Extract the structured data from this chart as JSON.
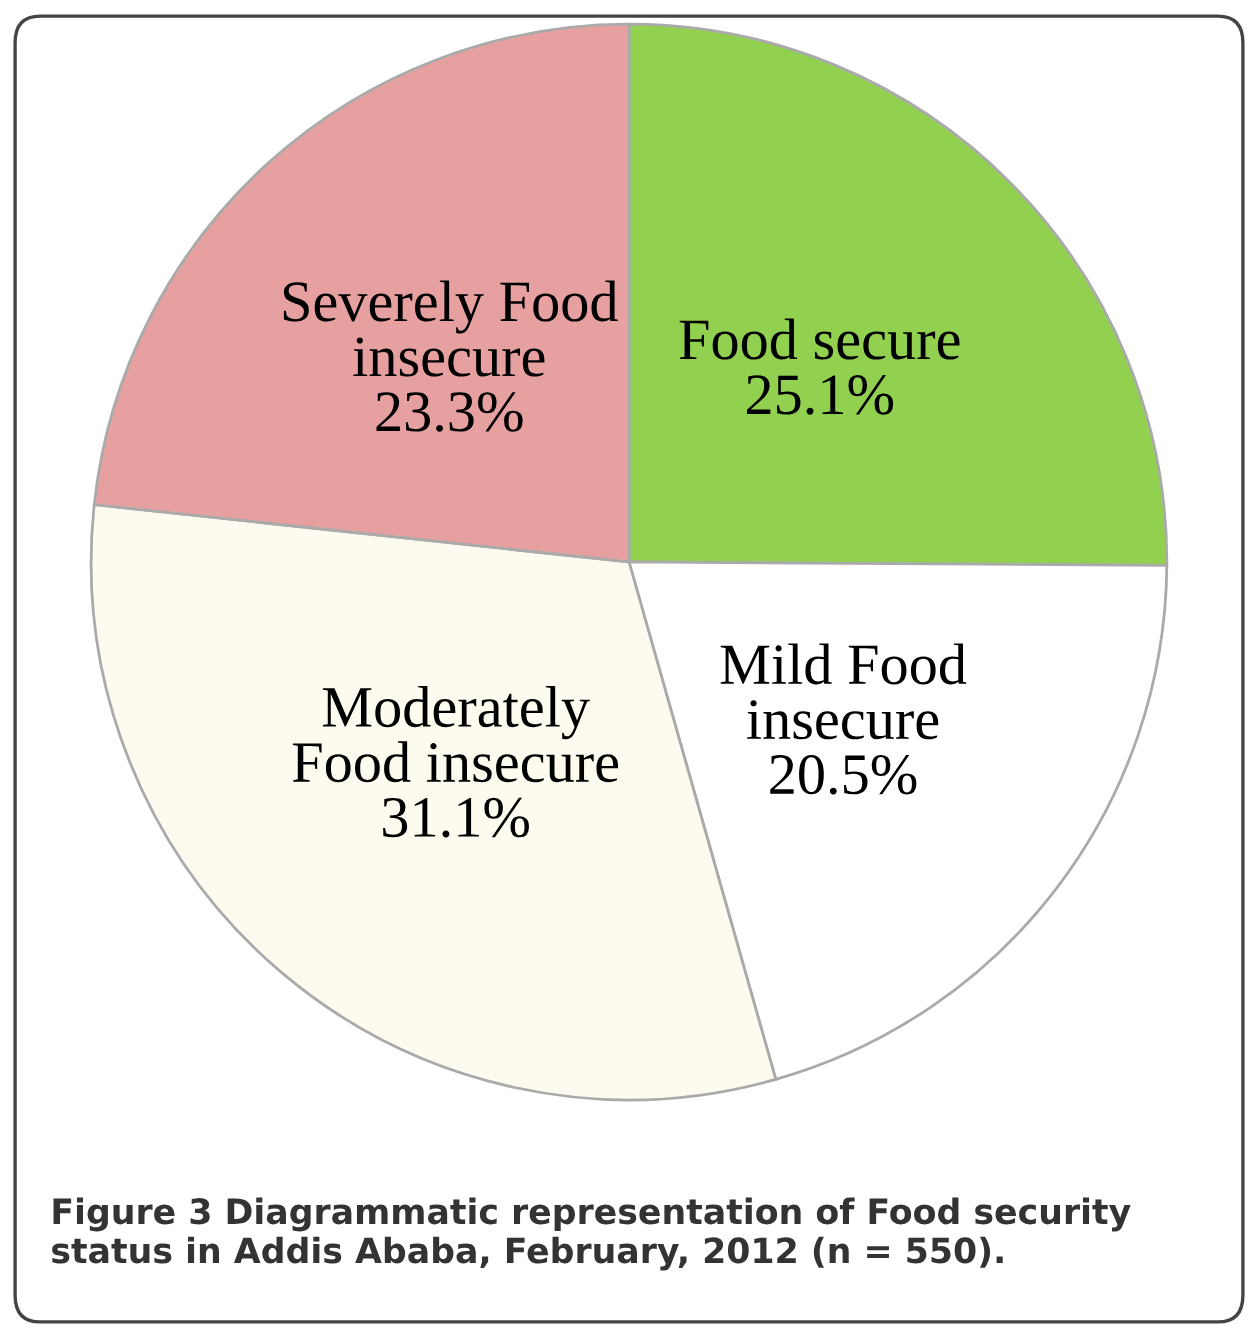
{
  "chart_data": {
    "type": "pie",
    "categories": [
      "Food secure",
      "Mild Food\ninsecure",
      "Moderately\nFood insecure",
      "Severely Food\ninsecure"
    ],
    "values": [
      25.1,
      20.5,
      31.1,
      23.3
    ],
    "value_labels": [
      "25.1%",
      "20.5%",
      "31.1%",
      "23.3%"
    ],
    "colors": [
      "#92d050",
      "#ffffff",
      "#fdfbf0",
      "#e6a0a0"
    ],
    "annotations": [
      "Figure 3 Diagrammatic representation of Food security status in Addis Ababa, February, 2012 (n = 550)."
    ]
  }
}
